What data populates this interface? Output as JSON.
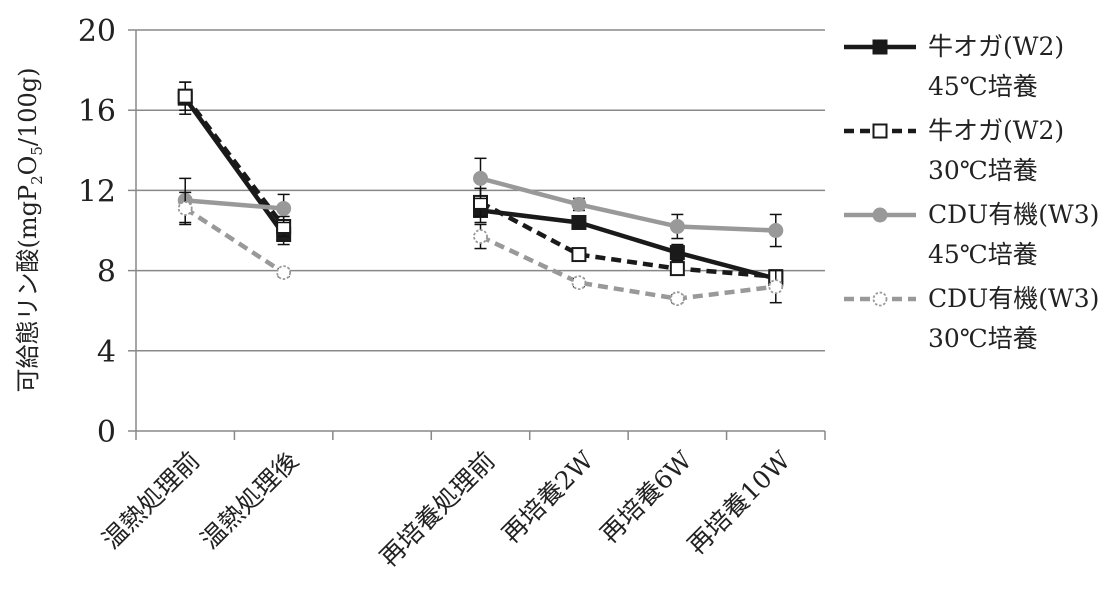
{
  "chart_data": {
    "type": "line",
    "title": "",
    "xlabel": "",
    "ylabel": "可給態リン酸(mgP2O5/100g)",
    "ylabel_parts": {
      "pre": "可給態リン酸(mgP",
      "sub1": "2",
      "mid": "O",
      "sub2": "5",
      "post": "/100g)"
    },
    "ylim": [
      0,
      20
    ],
    "yticks": [
      "0",
      "4",
      "8",
      "12",
      "16",
      "20"
    ],
    "grid": true,
    "legend_position": "right",
    "categories": [
      "温熱処理前",
      "温熱処理後",
      "",
      "再培養処理前",
      "再培養2W",
      "再培養6W",
      "再培養10W"
    ],
    "series": [
      {
        "name": "牛オガ(W2)",
        "name_sub": "45℃培養",
        "color": "#1a1a1a",
        "dash": "solid",
        "marker": "square-filled",
        "values": [
          16.6,
          9.8,
          null,
          11.0,
          10.4,
          8.9,
          7.6
        ],
        "errors": [
          0.8,
          0.5,
          null,
          0.6,
          0.3,
          0.4,
          0.3
        ]
      },
      {
        "name": "牛オガ(W2)",
        "name_sub": "30℃培養",
        "color": "#1a1a1a",
        "dash": "dashed",
        "marker": "square-open",
        "values": [
          16.7,
          10.2,
          null,
          11.4,
          8.8,
          8.1,
          7.7
        ],
        "errors": [
          0.7,
          0.5,
          null,
          0.7,
          0.3,
          0.3,
          0.3
        ]
      },
      {
        "name": "CDU有機(W3)",
        "name_sub": "45℃培養",
        "color": "#999999",
        "dash": "solid",
        "marker": "circle-filled",
        "values": [
          11.5,
          11.1,
          null,
          12.6,
          11.3,
          10.2,
          10.0
        ],
        "errors": [
          1.1,
          0.7,
          null,
          1.0,
          0.3,
          0.6,
          0.8
        ]
      },
      {
        "name": "CDU有機(W3)",
        "name_sub": "30℃培養",
        "color": "#999999",
        "dash": "dashed",
        "marker": "circle-open",
        "values": [
          11.1,
          7.9,
          null,
          9.7,
          7.4,
          6.6,
          7.2
        ],
        "errors": [
          0.8,
          0.2,
          null,
          0.6,
          0.2,
          0.2,
          0.8
        ]
      }
    ]
  }
}
